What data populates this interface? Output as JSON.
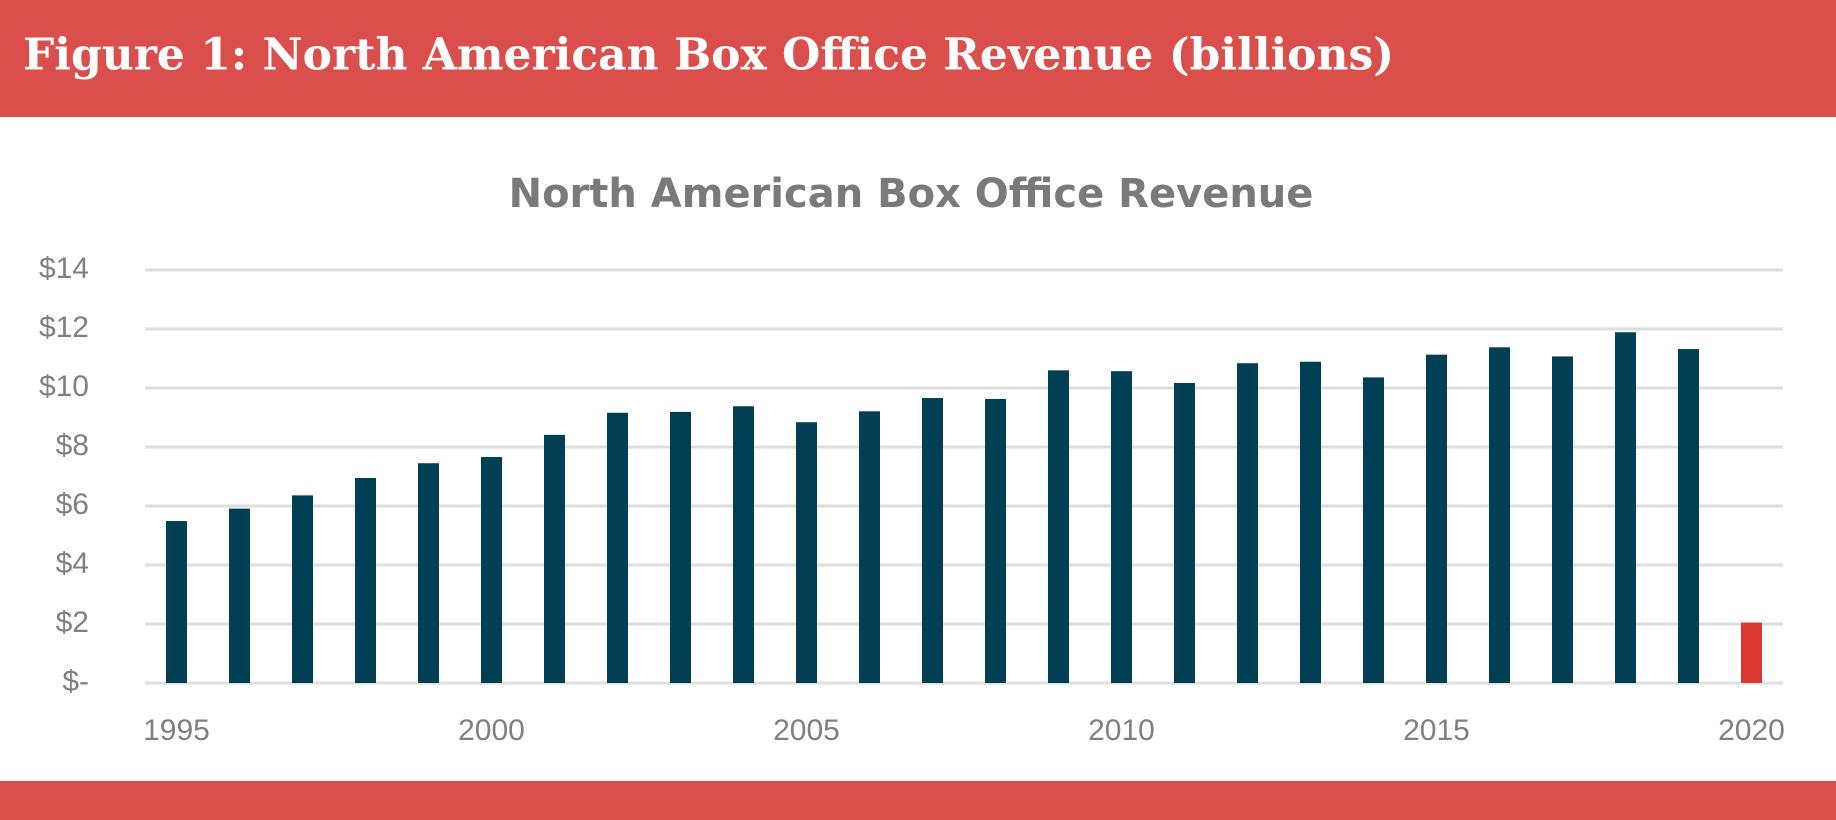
{
  "header": {
    "title": "Figure 1: North American Box Office Revenue (billions)"
  },
  "chart_data": {
    "type": "bar",
    "title": "North American Box Office Revenue",
    "x": [
      1995,
      1996,
      1997,
      1998,
      1999,
      2000,
      2001,
      2002,
      2003,
      2004,
      2005,
      2006,
      2007,
      2008,
      2009,
      2010,
      2011,
      2012,
      2013,
      2014,
      2015,
      2016,
      2017,
      2018,
      2019,
      2020
    ],
    "values": [
      5.49,
      5.91,
      6.36,
      6.95,
      7.45,
      7.66,
      8.41,
      9.16,
      9.19,
      9.38,
      8.84,
      9.21,
      9.66,
      9.63,
      10.6,
      10.57,
      10.17,
      10.84,
      10.89,
      10.36,
      11.13,
      11.38,
      11.07,
      11.89,
      11.32,
      2.05
    ],
    "colors": [
      "#003f54",
      "#003f54",
      "#003f54",
      "#003f54",
      "#003f54",
      "#003f54",
      "#003f54",
      "#003f54",
      "#003f54",
      "#003f54",
      "#003f54",
      "#003f54",
      "#003f54",
      "#003f54",
      "#003f54",
      "#003f54",
      "#003f54",
      "#003f54",
      "#003f54",
      "#003f54",
      "#003f54",
      "#003f54",
      "#003f54",
      "#003f54",
      "#003f54",
      "#d9392f"
    ],
    "xlim": [
      1994.5,
      2020.5
    ],
    "xticks": [
      1995,
      2000,
      2005,
      2010,
      2015,
      2020
    ],
    "ylim": [
      0,
      14
    ],
    "yticks": [
      {
        "value": 0,
        "label": "$-"
      },
      {
        "value": 2,
        "label": "$2"
      },
      {
        "value": 4,
        "label": "$4"
      },
      {
        "value": 6,
        "label": "$6"
      },
      {
        "value": 8,
        "label": "$8"
      },
      {
        "value": 10,
        "label": "$10"
      },
      {
        "value": 12,
        "label": "$12"
      },
      {
        "value": 14,
        "label": "$14"
      }
    ],
    "grid": true
  }
}
